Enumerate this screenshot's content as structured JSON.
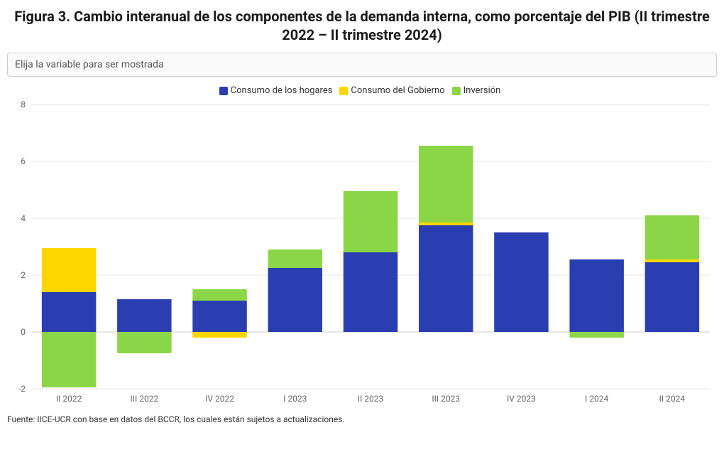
{
  "title": "Figura 3. Cambio interanual de los componentes de la demanda interna, como porcentaje del PIB (II trimestre 2022 – II trimestre 2024)",
  "selector": {
    "placeholder": "Elija la variable para ser mostrada"
  },
  "legend": [
    {
      "key": "hogares",
      "label": "Consumo de los hogares",
      "color": "#2a3eb1"
    },
    {
      "key": "gobierno",
      "label": "Consumo del Gobierno",
      "color": "#ffd500"
    },
    {
      "key": "inversion",
      "label": "Inversión",
      "color": "#8bd646"
    }
  ],
  "chart": {
    "type": "stacked-bar",
    "ylim": [
      -2,
      8
    ],
    "ytick_step": 2,
    "categories": [
      "II 2022",
      "III 2022",
      "IV 2022",
      "I 2023",
      "II 2023",
      "III 2023",
      "IV 2023",
      "I 2024",
      "II 2024"
    ],
    "series": {
      "hogares": [
        1.4,
        1.15,
        1.1,
        2.25,
        2.8,
        3.75,
        3.5,
        2.55,
        2.45
      ],
      "gobierno": [
        1.55,
        0.0,
        -0.2,
        0.0,
        0.0,
        0.1,
        0.0,
        0.0,
        0.1
      ],
      "inversion": [
        -1.95,
        -0.75,
        0.4,
        0.65,
        2.15,
        2.7,
        0.0,
        -0.2,
        1.55
      ]
    },
    "colors": {
      "hogares": "#2a3eb1",
      "gobierno": "#ffd500",
      "inversion": "#8bd646"
    },
    "bar_width_ratio": 0.72,
    "background": "#ffffff",
    "grid_color": "#e6e6e6",
    "axis_text_color": "#666666",
    "label_fontsize": 12
  },
  "footer": "Fuente: IICE-UCR con base en datos del BCCR, los cuales están sujetos a actualizaciones."
}
